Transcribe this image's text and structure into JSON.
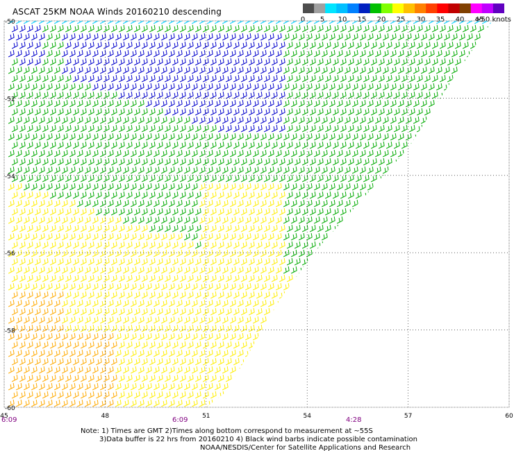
{
  "title": "ASCAT 25KM NOAA Winds 20160210 descending",
  "colorbar": {
    "labels": [
      "0",
      "5",
      "10",
      "15",
      "20",
      "25",
      "30",
      "35",
      "40",
      "45",
      ">50 knots"
    ],
    "colors": [
      "#4d4d4d",
      "#a0a0a0",
      "#00e5ff",
      "#00bfff",
      "#0080ff",
      "#0020c0",
      "#00c000",
      "#80ff00",
      "#ffff00",
      "#ffc000",
      "#ff8000",
      "#ff4000",
      "#ff0000",
      "#c00000",
      "#804000",
      "#ff00ff",
      "#c000ff",
      "#6000c0"
    ]
  },
  "chart_data": {
    "type": "map",
    "x_ticks": [
      "45",
      "48",
      "51",
      "54",
      "57",
      "60"
    ],
    "y_ticks": [
      "-50",
      "-52",
      "-54",
      "-56",
      "-58",
      "-60"
    ],
    "xlim": [
      45,
      60
    ],
    "ylim": [
      -60,
      -50
    ],
    "grid": true,
    "time_labels": [
      {
        "lon": 45,
        "text": "6:09"
      },
      {
        "lon": 50,
        "text": "6:09"
      },
      {
        "lon": 55,
        "text": "4:28"
      }
    ],
    "swath_edge_points": [
      [
        45,
        -50
      ],
      [
        59.5,
        -50
      ],
      [
        58.4,
        -51.4
      ],
      [
        57,
        -53.3
      ],
      [
        54.2,
        -56.0
      ],
      [
        53.2,
        -57.2
      ],
      [
        51.6,
        -59.6
      ],
      [
        51,
        -60
      ],
      [
        45,
        -60
      ]
    ],
    "wind_regions": [
      {
        "speed_class": "5-10 kt",
        "color": "#00ccff",
        "description": "northern edge"
      },
      {
        "speed_class": "10-15 kt",
        "color": "#0000cc",
        "description": "north-central band"
      },
      {
        "speed_class": "15-20 kt",
        "color": "#00aa00",
        "description": "central band"
      },
      {
        "speed_class": "20-25 kt",
        "color": "#ffee00",
        "description": "southern area"
      },
      {
        "speed_class": "25-30 kt",
        "color": "#ffaa00",
        "description": "southwest corner"
      }
    ]
  },
  "notes": [
    "Note: 1) Times are GMT 2)Times along bottom correspond to measurement at ~55S",
    "3)Data buffer is 22 hrs from 20160210 4) Black wind barbs indicate possible contamination",
    "NOAA/NESDIS/Center for Satellite Applications and Research"
  ]
}
